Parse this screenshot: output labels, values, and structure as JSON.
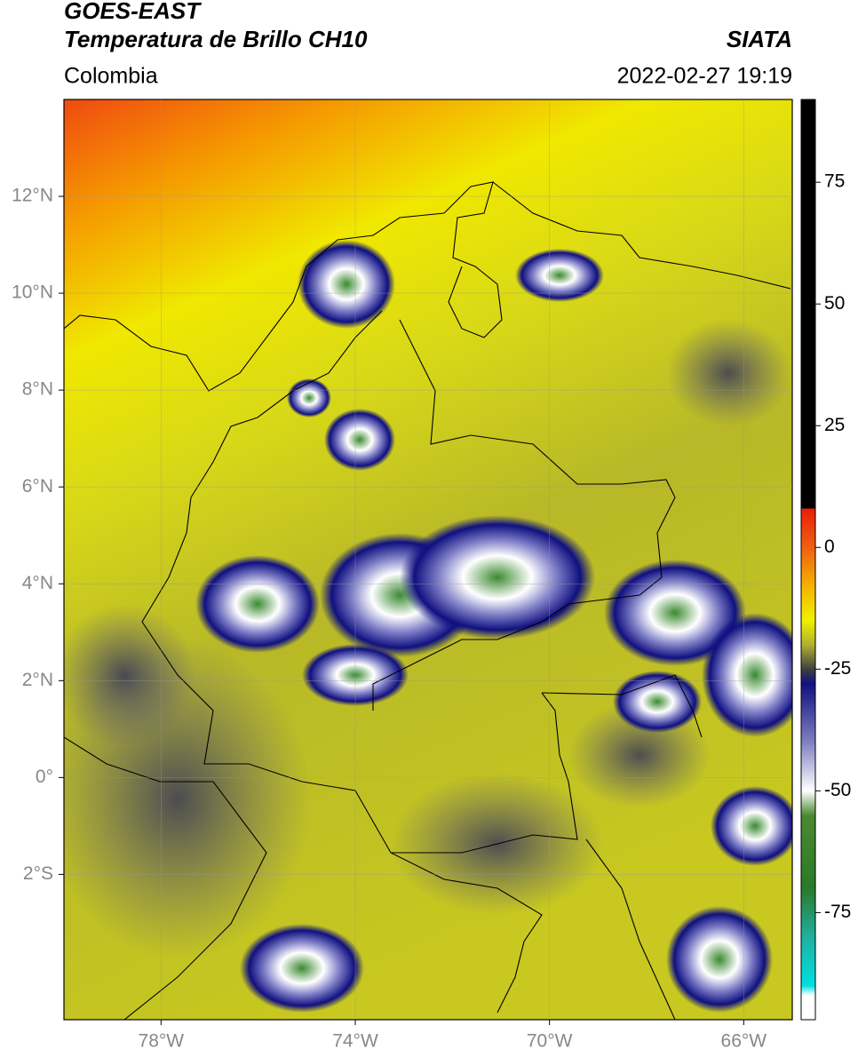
{
  "header": {
    "title": "GOES-EAST",
    "subtitle": "Temperatura de Brillo CH10",
    "source": "SIATA",
    "region": "Colombia",
    "datetime": "2022-02-27 19:19"
  },
  "map": {
    "lon_range": [
      -80,
      -65
    ],
    "lat_range": [
      -5,
      14
    ],
    "grid": true,
    "xticks": [
      {
        "value": -78,
        "label": "78°W"
      },
      {
        "value": -74,
        "label": "74°W"
      },
      {
        "value": -70,
        "label": "70°W"
      },
      {
        "value": -66,
        "label": "66°W"
      }
    ],
    "yticks": [
      {
        "value": 12,
        "label": "12°N"
      },
      {
        "value": 10,
        "label": "10°N"
      },
      {
        "value": 8,
        "label": "8°N"
      },
      {
        "value": 6,
        "label": "6°N"
      },
      {
        "value": 4,
        "label": "4°N"
      },
      {
        "value": 2,
        "label": "2°N"
      },
      {
        "value": 0,
        "label": "0°"
      },
      {
        "value": -2,
        "label": "2°S"
      }
    ]
  },
  "colorbar": {
    "range": [
      -97,
      92
    ],
    "ticks": [
      75,
      50,
      25,
      0,
      -25,
      -50,
      -75
    ],
    "colors": [
      {
        "value": 92,
        "color": "#000000"
      },
      {
        "value": 8,
        "color": "#000000"
      },
      {
        "value": 8,
        "color": "#e81e0a"
      },
      {
        "value": 0,
        "color": "#f06010"
      },
      {
        "value": -8,
        "color": "#f5b400"
      },
      {
        "value": -15,
        "color": "#f0f000"
      },
      {
        "value": -20,
        "color": "#b0b030"
      },
      {
        "value": -25,
        "color": "#404040"
      },
      {
        "value": -28,
        "color": "#101080"
      },
      {
        "value": -40,
        "color": "#8080c0"
      },
      {
        "value": -50,
        "color": "#ffffff"
      },
      {
        "value": -55,
        "color": "#4a8a30"
      },
      {
        "value": -70,
        "color": "#2a7a2a"
      },
      {
        "value": -80,
        "color": "#20b0a0"
      },
      {
        "value": -90,
        "color": "#00e0e0"
      },
      {
        "value": -92,
        "color": "#ffffff"
      },
      {
        "value": -97,
        "color": "#ffffff"
      }
    ]
  }
}
